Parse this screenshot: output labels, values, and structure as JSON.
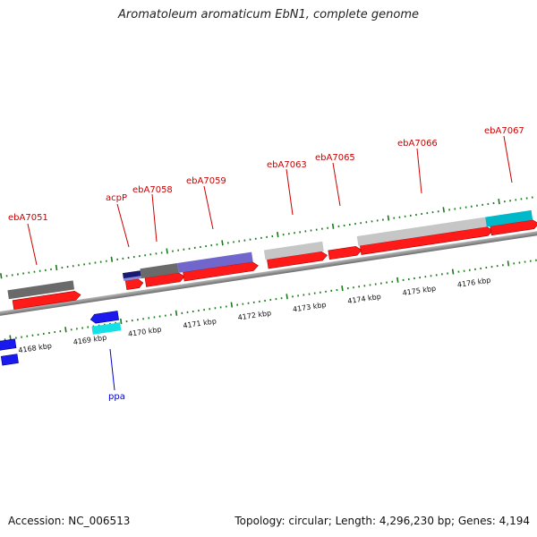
{
  "title": "Aromatoleum aromaticum EbN1, complete genome",
  "footer": {
    "accession": "Accession: NC_006513",
    "summary": "Topology: circular; Length: 4,296,230 bp; Genes: 4,194"
  },
  "scale_labels": [
    "4168 kbp",
    "4169 kbp",
    "4170 kbp",
    "4171 kbp",
    "4172 kbp",
    "4173 kbp",
    "4174 kbp",
    "4175 kbp",
    "4176 kbp"
  ],
  "gene_labels_top": [
    "ebA7051",
    "acpP",
    "ebA7058",
    "ebA7059",
    "ebA7063",
    "ebA7065",
    "ebA7066",
    "ebA7067"
  ],
  "gene_labels_bottom": [
    "ppa"
  ],
  "colors": {
    "forward_gene": "#ff0000",
    "reverse_gene": "#0000ee",
    "label_red": "#cc0000",
    "label_blue": "#0000cc",
    "tick": "#1a7a1a",
    "backbone": "#808080"
  }
}
